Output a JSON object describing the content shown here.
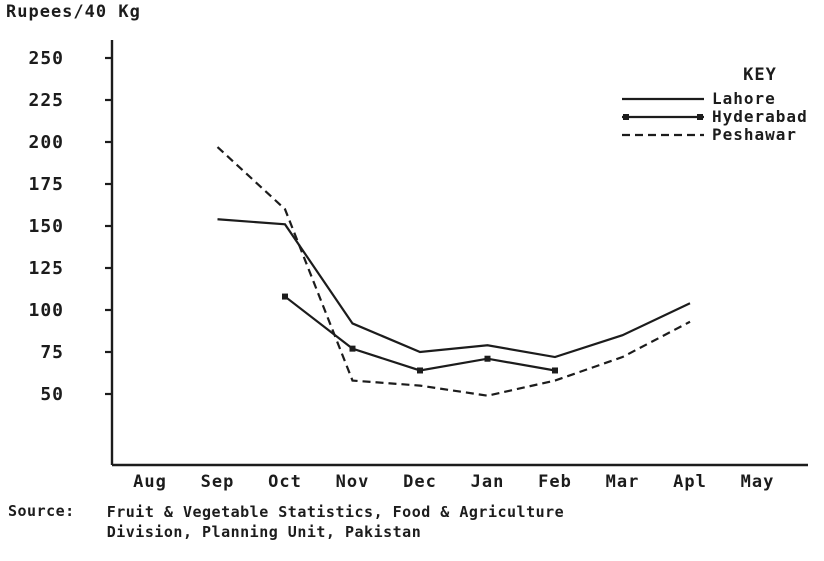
{
  "y_axis_title": "Rupees/40 Kg",
  "chart_data": {
    "type": "line",
    "title": "",
    "xlabel": "",
    "ylabel": "Rupees/40 Kg",
    "ylim": [
      0,
      260
    ],
    "grid": false,
    "y_ticks": [
      250,
      225,
      200,
      175,
      150,
      125,
      100,
      75,
      50
    ],
    "categories": [
      "Aug",
      "Sep",
      "Oct",
      "Nov",
      "Dec",
      "Jan",
      "Feb",
      "Mar",
      "Apl",
      "May"
    ],
    "legend_title": "KEY",
    "legend_position": "top-right",
    "series": [
      {
        "name": "Lahore",
        "style": "solid",
        "marker": "none",
        "points": [
          {
            "x": "Sep",
            "y": 154
          },
          {
            "x": "Oct",
            "y": 151
          },
          {
            "x": "Nov",
            "y": 92
          },
          {
            "x": "Dec",
            "y": 75
          },
          {
            "x": "Jan",
            "y": 79
          },
          {
            "x": "Feb",
            "y": 72
          },
          {
            "x": "Mar",
            "y": 85
          },
          {
            "x": "Apl",
            "y": 104
          }
        ]
      },
      {
        "name": "Hyderabad",
        "style": "solid",
        "marker": "square",
        "points": [
          {
            "x": "Oct",
            "y": 108
          },
          {
            "x": "Nov",
            "y": 77
          },
          {
            "x": "Dec",
            "y": 64
          },
          {
            "x": "Jan",
            "y": 71
          },
          {
            "x": "Feb",
            "y": 64
          }
        ]
      },
      {
        "name": "Peshawar",
        "style": "dashed",
        "marker": "none",
        "points": [
          {
            "x": "Sep",
            "y": 197
          },
          {
            "x": "Oct",
            "y": 160
          },
          {
            "x": "Nov",
            "y": 58
          },
          {
            "x": "Dec",
            "y": 55
          },
          {
            "x": "Jan",
            "y": 49
          },
          {
            "x": "Feb",
            "y": 58
          },
          {
            "x": "Mar",
            "y": 72
          },
          {
            "x": "Apl",
            "y": 93
          }
        ]
      }
    ]
  },
  "source": {
    "label": "Source:",
    "line1": "Fruit & Vegetable Statistics, Food & Agriculture",
    "line2": "Division, Planning Unit, Pakistan"
  },
  "ink_color": "#1c1c1c"
}
